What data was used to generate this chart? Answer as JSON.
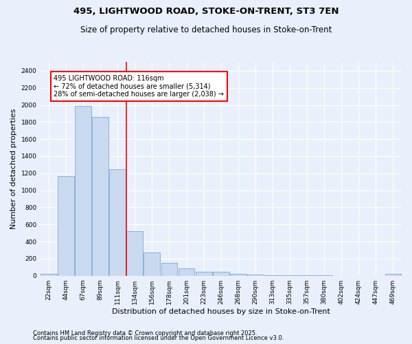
{
  "title1": "495, LIGHTWOOD ROAD, STOKE-ON-TRENT, ST3 7EN",
  "title2": "Size of property relative to detached houses in Stoke-on-Trent",
  "xlabel": "Distribution of detached houses by size in Stoke-on-Trent",
  "ylabel": "Number of detached properties",
  "bar_color": "#c9d9f0",
  "bar_edge_color": "#7baad4",
  "background_color": "#eaf0fb",
  "categories": [
    "22sqm",
    "44sqm",
    "67sqm",
    "89sqm",
    "111sqm",
    "134sqm",
    "156sqm",
    "178sqm",
    "201sqm",
    "223sqm",
    "246sqm",
    "268sqm",
    "290sqm",
    "313sqm",
    "335sqm",
    "357sqm",
    "380sqm",
    "402sqm",
    "424sqm",
    "447sqm",
    "469sqm"
  ],
  "values": [
    25,
    1170,
    1985,
    1860,
    1245,
    520,
    275,
    150,
    90,
    45,
    45,
    20,
    15,
    5,
    3,
    2,
    2,
    1,
    1,
    1,
    20
  ],
  "vline_x": 4.5,
  "vline_color": "red",
  "annotation_text": "495 LIGHTWOOD ROAD: 116sqm\n← 72% of detached houses are smaller (5,314)\n28% of semi-detached houses are larger (2,038) →",
  "annotation_box_color": "white",
  "annotation_box_edge": "red",
  "ylim": [
    0,
    2500
  ],
  "yticks": [
    0,
    200,
    400,
    600,
    800,
    1000,
    1200,
    1400,
    1600,
    1800,
    2000,
    2200,
    2400
  ],
  "footer1": "Contains HM Land Registry data © Crown copyright and database right 2025.",
  "footer2": "Contains public sector information licensed under the Open Government Licence v3.0.",
  "title_fontsize": 9.5,
  "subtitle_fontsize": 8.5,
  "axis_label_fontsize": 8,
  "tick_fontsize": 6.5,
  "annotation_fontsize": 7,
  "footer_fontsize": 6
}
